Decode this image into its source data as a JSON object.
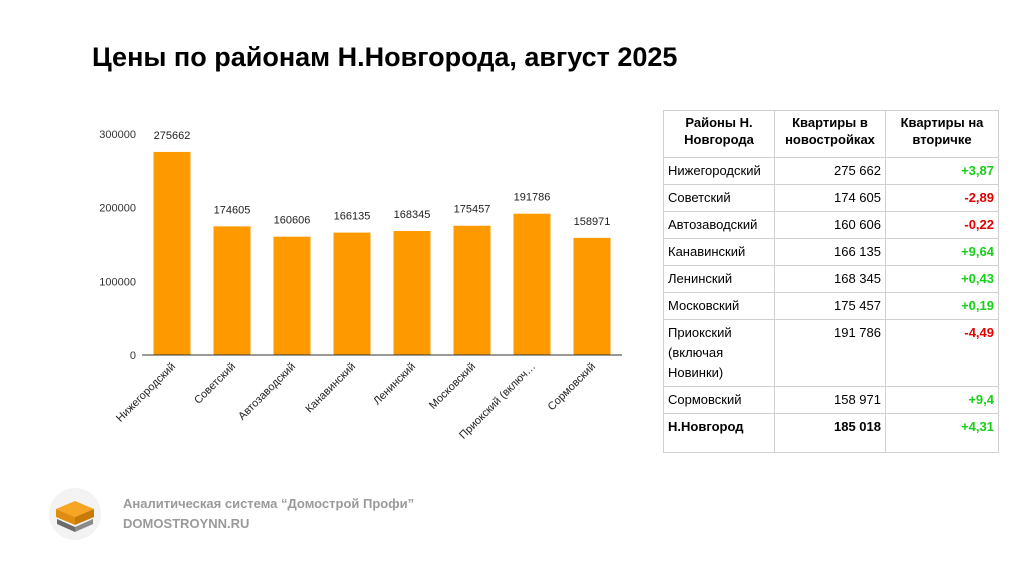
{
  "page": {
    "title": "Цены по районам Н.Новгорода, август 2025"
  },
  "chart_data": {
    "type": "bar",
    "categories": [
      "Нижегородский",
      "Советский",
      "Автозаводский",
      "Канавинский",
      "Ленинский",
      "Московский",
      "Приокский (включ…",
      "Сормовский"
    ],
    "values": [
      275662,
      174605,
      160606,
      166135,
      168345,
      175457,
      191786,
      158971
    ],
    "data_labels": [
      "275662",
      "174605",
      "160606",
      "166135",
      "168345",
      "175457",
      "191786",
      "158971"
    ],
    "yticks": [
      0,
      100000,
      200000,
      300000
    ],
    "ytick_labels": [
      "0",
      "100000",
      "200000",
      "300000"
    ],
    "ylim": [
      0,
      300000
    ],
    "grid": false,
    "bar_color": "#ff9900"
  },
  "table": {
    "headers": [
      "Районы Н. Новгорода",
      "Квартиры в новостройках",
      "Квартиры на вторичке"
    ],
    "rows": [
      {
        "district": "Нижегородский",
        "new": "275 662",
        "secondary": "+3,87",
        "sign": "pos"
      },
      {
        "district": "Советский",
        "new": "174 605",
        "secondary": "-2,89",
        "sign": "neg"
      },
      {
        "district": "Автозаводский",
        "new": "160 606",
        "secondary": "-0,22",
        "sign": "neg"
      },
      {
        "district": "Канавинский",
        "new": "166 135",
        "secondary": "+9,64",
        "sign": "pos"
      },
      {
        "district": "Ленинский",
        "new": "168 345",
        "secondary": "+0,43",
        "sign": "pos"
      },
      {
        "district": "Московский",
        "new": "175 457",
        "secondary": "+0,19",
        "sign": "pos"
      },
      {
        "district": "Приокский (включая Новинки)",
        "new": "191 786",
        "secondary": "-4,49",
        "sign": "neg"
      },
      {
        "district": "Сормовский",
        "new": "158 971",
        "secondary": "+9,4",
        "sign": "pos"
      }
    ],
    "total": {
      "district": "Н.Новгород",
      "new": "185 018",
      "secondary": "+4,31",
      "sign": "pos"
    },
    "colors": {
      "positive": "#16cf16",
      "negative": "#e00000"
    }
  },
  "footer": {
    "line1": "Аналитическая система “Домострой Профи”",
    "line2": "DOMOSTROYNN.RU",
    "logo_icon": "stacked-books-logo-icon"
  }
}
